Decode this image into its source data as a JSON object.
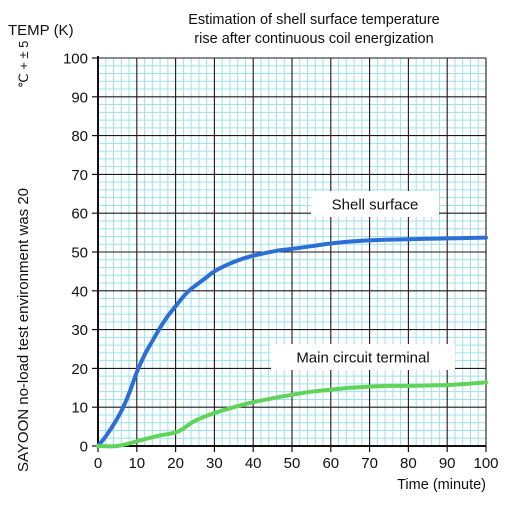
{
  "chart_data": {
    "type": "line",
    "title_line1": "Estimation of shell surface temperature",
    "title_line2": "rise after continuous coil energization",
    "ylabel_top": "TEMP (K)",
    "side_note_main": "SAYOON no-load test environment was 20",
    "side_note_unit": "℃ + ± 5",
    "xlabel": "Time (minute)",
    "xlim": [
      0,
      100
    ],
    "ylim": [
      0,
      100
    ],
    "x_ticks": [
      0,
      10,
      20,
      30,
      40,
      50,
      60,
      70,
      80,
      90,
      100
    ],
    "y_ticks": [
      0,
      10,
      20,
      30,
      40,
      50,
      60,
      70,
      80,
      90,
      100
    ],
    "grid": true,
    "colors": {
      "shell": "#2b6fd6",
      "terminal": "#5fd35a",
      "grid_minor": "#9fe0ec",
      "grid_major": "#1a1a1a"
    },
    "series": [
      {
        "name": "Shell surface",
        "x": [
          0,
          2,
          4,
          6,
          8,
          10,
          12,
          14,
          16,
          18,
          20,
          22,
          24,
          26,
          28,
          30,
          34,
          38,
          42,
          46,
          50,
          55,
          60,
          65,
          70,
          75,
          80,
          85,
          90,
          95,
          100
        ],
        "y": [
          0,
          2.5,
          5.5,
          9,
          13.5,
          19,
          23.5,
          27,
          30.5,
          33.5,
          36,
          38.5,
          40.5,
          42,
          43.5,
          45,
          47,
          48.5,
          49.5,
          50.3,
          50.8,
          51.5,
          52.2,
          52.7,
          53,
          53.2,
          53.3,
          53.4,
          53.5,
          53.6,
          53.7
        ]
      },
      {
        "name": "Main circuit terminal",
        "x": [
          0,
          5,
          10,
          15,
          20,
          22,
          25,
          30,
          35,
          40,
          45,
          50,
          55,
          60,
          65,
          70,
          75,
          80,
          85,
          90,
          95,
          100
        ],
        "y": [
          0,
          0,
          1.2,
          2.5,
          3.5,
          4.5,
          6.5,
          8.5,
          10,
          11.3,
          12.3,
          13.2,
          14,
          14.5,
          15,
          15.3,
          15.5,
          15.5,
          15.6,
          15.7,
          16,
          16.4
        ]
      }
    ]
  }
}
